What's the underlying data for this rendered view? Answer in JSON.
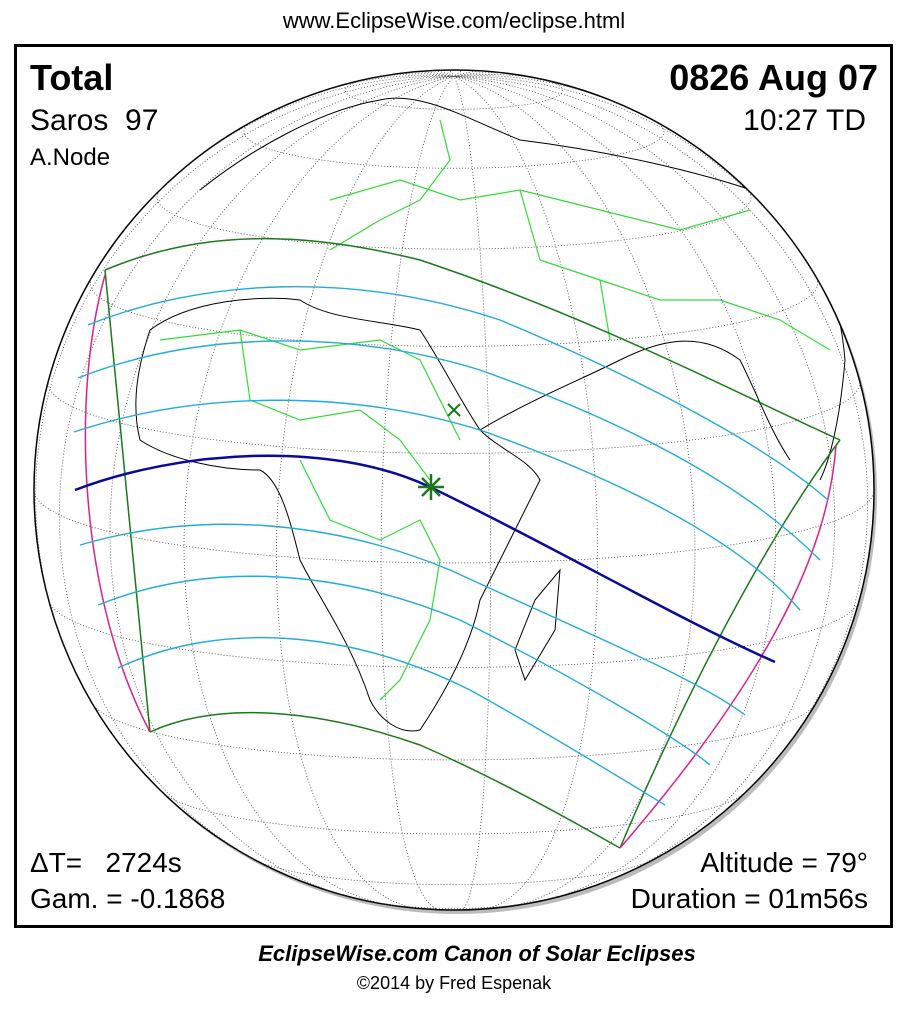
{
  "header": {
    "url": "www.EclipseWise.com/eclipse.html"
  },
  "panel": {
    "eclipse_type": "Total",
    "saros": "Saros  97",
    "node": "A.Node",
    "date": "0826 Aug 07",
    "time": "10:27 TD",
    "delta_t": "ΔT=   2724s",
    "gamma": "Gam. = -0.1868",
    "altitude": "Altitude = 79°",
    "duration": "Duration = 01m56s"
  },
  "footer": {
    "title": "EclipseWise.com Canon of Solar Eclipses",
    "credit": "©2014 by Fred Espenak"
  }
}
